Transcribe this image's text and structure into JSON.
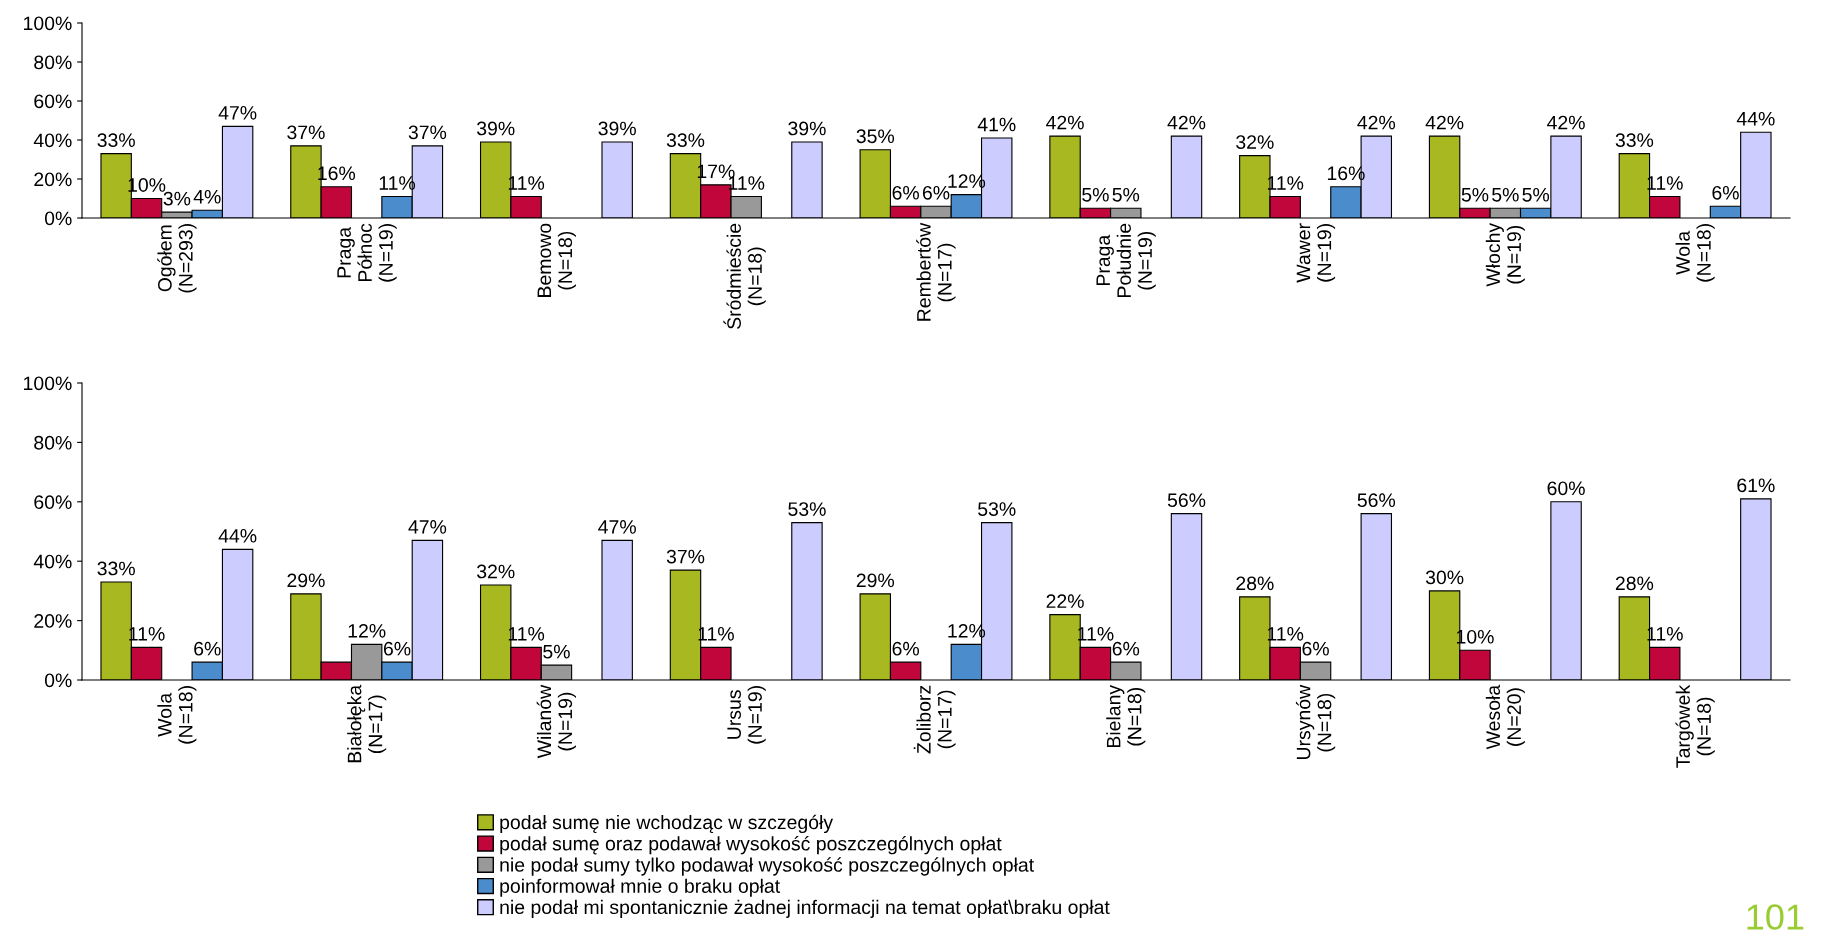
{
  "chart_data": [
    {
      "type": "bar",
      "categories": [
        "Ogółem\n(N=293)",
        "Praga\nPółnoc\n(N=19)",
        "Bemowo\n(N=18)",
        "Śródmieście\n(N=18)",
        "Rembertów\n(N=17)",
        "Praga\nPołudnie\n(N=19)",
        "Wawer\n(N=19)",
        "Włochy\n(N=19)",
        "Wola\n(N=18)"
      ],
      "series": [
        {
          "name": "podał sumę nie wchodząc w szczegóły",
          "color": "#a8b820",
          "values": [
            33,
            37,
            39,
            33,
            35,
            42,
            32,
            42,
            33
          ],
          "value_labels": [
            "33%",
            "37%",
            "39%",
            "33%",
            "35%",
            "42%",
            "32%",
            "42%",
            "33%"
          ]
        },
        {
          "name": "podał sumę oraz podawał wysokość poszczególnych opłat",
          "color": "#c0063a",
          "values": [
            10,
            16,
            11,
            17,
            6,
            5,
            11,
            5,
            11
          ],
          "value_labels": [
            "10%",
            "16%",
            "11%",
            "17%",
            "6%",
            "5%",
            "11%",
            "5%",
            "11%"
          ]
        },
        {
          "name": "nie podał sumy tylko podawał wysokość poszczególnych opłat",
          "color": "#999999",
          "values": [
            3,
            null,
            null,
            11,
            6,
            5,
            null,
            5,
            null
          ],
          "value_labels": [
            "3%",
            null,
            null,
            "11%",
            "6%",
            "5%",
            null,
            "5%",
            null
          ]
        },
        {
          "name": "poinformował mnie o braku opłat",
          "color": "#4a8ccc",
          "values": [
            4,
            11,
            null,
            null,
            12,
            null,
            16,
            5,
            6
          ],
          "value_labels": [
            "4%",
            "11%",
            null,
            null,
            "12%",
            null,
            "16%",
            "5%",
            "6%"
          ]
        },
        {
          "name": "nie podał mi spontanicznie żadnej informacji na temat opłat\\braku opłat",
          "color": "#ccccff",
          "values": [
            47,
            37,
            39,
            39,
            41,
            42,
            42,
            42,
            44
          ],
          "value_labels": [
            "47%",
            "37%",
            "39%",
            "39%",
            "41%",
            "42%",
            "42%",
            "42%",
            "44%"
          ]
        }
      ],
      "ylim": [
        0,
        100
      ],
      "yticks": [
        {
          "value": 0,
          "label": "0%"
        },
        {
          "value": 20,
          "label": "20%"
        },
        {
          "value": 40,
          "label": "40%"
        },
        {
          "value": 60,
          "label": "60%"
        },
        {
          "value": 80,
          "label": "80%"
        },
        {
          "value": 100,
          "label": "100%"
        }
      ],
      "legend": "bottom"
    },
    {
      "type": "bar",
      "categories": [
        "Wola\n(N=18)",
        "Białołęka\n(N=17)",
        "Wilanów\n(N=19)",
        "Ursus\n(N=19)",
        "Żoliborz\n(N=17)",
        "Bielany\n(N=18)",
        "Ursynów\n(N=18)",
        "Wesoła\n(N=20)",
        "Targówek\n(N=18)"
      ],
      "series": [
        {
          "name": "podał sumę nie wchodząc w szczegóły",
          "color": "#a8b820",
          "values": [
            33,
            29,
            32,
            37,
            29,
            22,
            28,
            30,
            28
          ],
          "value_labels": [
            "33%",
            "29%",
            "32%",
            "37%",
            "29%",
            "22%",
            "28%",
            "30%",
            "28%"
          ]
        },
        {
          "name": "podał sumę oraz podawał wysokość poszczególnych opłat",
          "color": "#c0063a",
          "values": [
            11,
            6,
            11,
            11,
            6,
            11,
            11,
            10,
            11
          ],
          "value_labels": [
            "11%",
            null,
            "11%",
            "11%",
            "6%",
            "11%",
            "11%",
            "10%",
            "11%"
          ]
        },
        {
          "name": "nie podał sumy tylko podawał wysokość poszczególnych opłat",
          "color": "#999999",
          "values": [
            null,
            12,
            5,
            null,
            null,
            6,
            6,
            null,
            null
          ],
          "value_labels": [
            null,
            "12%",
            "5%",
            null,
            null,
            "6%",
            "6%",
            null,
            null
          ]
        },
        {
          "name": "poinformował mnie o braku opłat",
          "color": "#4a8ccc",
          "values": [
            6,
            6,
            null,
            null,
            12,
            null,
            null,
            null,
            null
          ],
          "value_labels": [
            "6%",
            "6%",
            null,
            null,
            "12%",
            null,
            null,
            null,
            null
          ]
        },
        {
          "name": "nie podał mi spontanicznie żadnej informacji na temat opłat\\braku opłat",
          "color": "#ccccff",
          "values": [
            44,
            47,
            47,
            53,
            53,
            56,
            56,
            60,
            61
          ],
          "value_labels": [
            "44%",
            "47%",
            "47%",
            "53%",
            "53%",
            "56%",
            "56%",
            "60%",
            "61%"
          ]
        }
      ],
      "ylim": [
        0,
        100
      ],
      "yticks": [
        {
          "value": 0,
          "label": "0%"
        },
        {
          "value": 20,
          "label": "20%"
        },
        {
          "value": 40,
          "label": "40%"
        },
        {
          "value": 60,
          "label": "60%"
        },
        {
          "value": 80,
          "label": "80%"
        },
        {
          "value": 100,
          "label": "100%"
        }
      ],
      "legend": "bottom",
      "annotations": [
        "101"
      ]
    }
  ]
}
